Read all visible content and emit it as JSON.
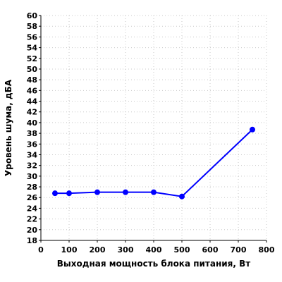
{
  "chart_data": {
    "type": "line",
    "xlabel": "Выходная мощность блока питания, Вт",
    "ylabel": "Уровень шума, дБА",
    "xlim": [
      0,
      800
    ],
    "ylim": [
      18,
      60
    ],
    "xticks": [
      0,
      100,
      200,
      300,
      400,
      500,
      600,
      700,
      800
    ],
    "yticks": [
      18,
      20,
      22,
      24,
      26,
      28,
      30,
      32,
      34,
      36,
      38,
      40,
      42,
      44,
      46,
      48,
      50,
      52,
      54,
      56,
      58,
      60
    ],
    "grid": true,
    "series": [
      {
        "x": [
          50,
          100,
          200,
          300,
          400,
          500,
          750
        ],
        "y": [
          26.8,
          26.8,
          27.0,
          27.0,
          27.0,
          26.2,
          38.7
        ],
        "color": "#0000ff"
      }
    ]
  }
}
